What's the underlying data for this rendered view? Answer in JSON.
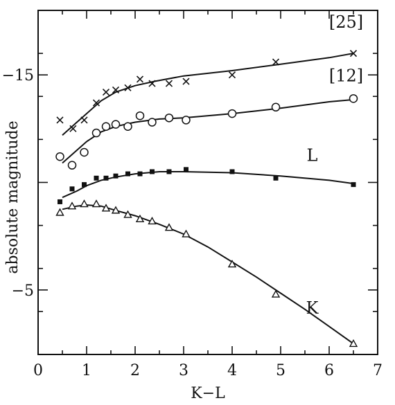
{
  "chart_data": {
    "type": "scatter",
    "xlabel": "K−L",
    "ylabel": "absolute magnitude",
    "xlim": [
      0,
      7
    ],
    "ylim": [
      -2,
      -18
    ],
    "y_inverted": true,
    "grid": false,
    "x_ticks": [
      0,
      1,
      2,
      3,
      4,
      5,
      6,
      7
    ],
    "y_tick_labels": [
      {
        "value": -15,
        "label": "−15"
      },
      {
        "value": -5,
        "label": "−5"
      }
    ],
    "series": [
      {
        "name": "[25]",
        "marker": "x",
        "points": [
          [
            0.45,
            -12.9
          ],
          [
            0.72,
            -12.5
          ],
          [
            0.95,
            -12.9
          ],
          [
            1.2,
            -13.7
          ],
          [
            1.4,
            -14.2
          ],
          [
            1.6,
            -14.3
          ],
          [
            1.85,
            -14.4
          ],
          [
            2.1,
            -14.8
          ],
          [
            2.35,
            -14.6
          ],
          [
            2.7,
            -14.6
          ],
          [
            3.05,
            -14.7
          ],
          [
            4.0,
            -15.0
          ],
          [
            4.9,
            -15.6
          ],
          [
            6.5,
            -16.0
          ]
        ],
        "curve": [
          [
            0.5,
            -12.2
          ],
          [
            0.8,
            -12.8
          ],
          [
            1.0,
            -13.2
          ],
          [
            1.3,
            -13.8
          ],
          [
            1.6,
            -14.2
          ],
          [
            2.0,
            -14.5
          ],
          [
            2.4,
            -14.7
          ],
          [
            3.0,
            -14.95
          ],
          [
            4.0,
            -15.2
          ],
          [
            5.0,
            -15.5
          ],
          [
            6.0,
            -15.8
          ],
          [
            6.5,
            -16.0
          ]
        ]
      },
      {
        "name": "[12]",
        "marker": "circle",
        "points": [
          [
            0.45,
            -11.2
          ],
          [
            0.7,
            -10.8
          ],
          [
            0.95,
            -11.4
          ],
          [
            1.2,
            -12.3
          ],
          [
            1.4,
            -12.6
          ],
          [
            1.6,
            -12.7
          ],
          [
            1.85,
            -12.6
          ],
          [
            2.1,
            -13.1
          ],
          [
            2.35,
            -12.8
          ],
          [
            2.7,
            -13.0
          ],
          [
            3.05,
            -12.9
          ],
          [
            4.0,
            -13.2
          ],
          [
            4.9,
            -13.5
          ],
          [
            6.5,
            -13.9
          ]
        ],
        "curve": [
          [
            0.5,
            -10.9
          ],
          [
            0.7,
            -11.3
          ],
          [
            1.0,
            -11.9
          ],
          [
            1.3,
            -12.35
          ],
          [
            1.6,
            -12.6
          ],
          [
            2.0,
            -12.8
          ],
          [
            2.5,
            -12.95
          ],
          [
            3.0,
            -13.0
          ],
          [
            4.0,
            -13.2
          ],
          [
            5.0,
            -13.45
          ],
          [
            6.0,
            -13.75
          ],
          [
            6.5,
            -13.85
          ]
        ]
      },
      {
        "name": "L",
        "marker": "square",
        "points": [
          [
            0.45,
            -9.1
          ],
          [
            0.7,
            -9.7
          ],
          [
            0.95,
            -9.9
          ],
          [
            1.2,
            -10.2
          ],
          [
            1.4,
            -10.2
          ],
          [
            1.6,
            -10.3
          ],
          [
            1.85,
            -10.4
          ],
          [
            2.1,
            -10.4
          ],
          [
            2.35,
            -10.5
          ],
          [
            2.7,
            -10.5
          ],
          [
            3.05,
            -10.6
          ],
          [
            4.0,
            -10.5
          ],
          [
            4.9,
            -10.2
          ],
          [
            6.5,
            -9.9
          ]
        ],
        "curve": [
          [
            0.5,
            -9.3
          ],
          [
            0.8,
            -9.6
          ],
          [
            1.0,
            -9.85
          ],
          [
            1.3,
            -10.1
          ],
          [
            1.6,
            -10.25
          ],
          [
            2.0,
            -10.4
          ],
          [
            2.5,
            -10.5
          ],
          [
            3.0,
            -10.5
          ],
          [
            4.0,
            -10.45
          ],
          [
            5.0,
            -10.3
          ],
          [
            6.0,
            -10.1
          ],
          [
            6.5,
            -9.95
          ]
        ]
      },
      {
        "name": "K",
        "marker": "triangle",
        "points": [
          [
            0.45,
            -8.6
          ],
          [
            0.7,
            -8.9
          ],
          [
            0.95,
            -9.0
          ],
          [
            1.2,
            -9.0
          ],
          [
            1.4,
            -8.8
          ],
          [
            1.6,
            -8.7
          ],
          [
            1.85,
            -8.5
          ],
          [
            2.1,
            -8.3
          ],
          [
            2.35,
            -8.2
          ],
          [
            2.7,
            -7.9
          ],
          [
            3.05,
            -7.6
          ],
          [
            4.0,
            -6.2
          ],
          [
            4.9,
            -4.8
          ],
          [
            6.5,
            -2.5
          ]
        ],
        "curve": [
          [
            0.5,
            -8.75
          ],
          [
            0.8,
            -8.9
          ],
          [
            1.0,
            -8.95
          ],
          [
            1.3,
            -8.9
          ],
          [
            1.6,
            -8.7
          ],
          [
            2.0,
            -8.45
          ],
          [
            2.5,
            -8.05
          ],
          [
            3.0,
            -7.6
          ],
          [
            3.5,
            -7.0
          ],
          [
            4.0,
            -6.3
          ],
          [
            4.5,
            -5.6
          ],
          [
            5.0,
            -4.85
          ],
          [
            5.5,
            -4.1
          ],
          [
            6.0,
            -3.3
          ],
          [
            6.5,
            -2.5
          ]
        ]
      }
    ],
    "series_label_positions": [
      {
        "series": "[25]",
        "x": 6.35,
        "y": -17.2
      },
      {
        "series": "[12]",
        "x": 6.35,
        "y": -14.7
      },
      {
        "series": "L",
        "x": 5.65,
        "y": -11.0
      },
      {
        "series": "K",
        "x": 5.65,
        "y": -3.9
      }
    ]
  }
}
